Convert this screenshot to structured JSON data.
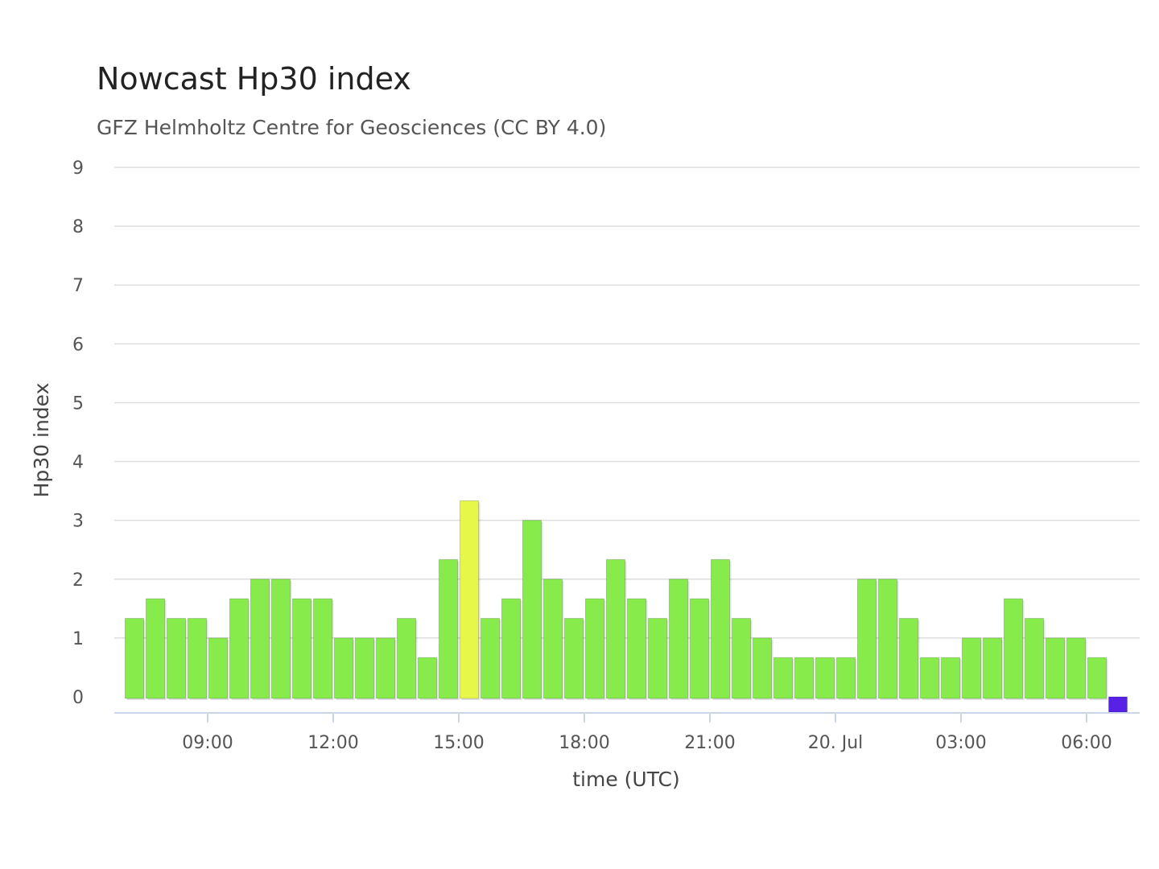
{
  "chart_data": {
    "type": "bar",
    "title": "Nowcast Hp30 index",
    "subtitle": "GFZ Helmholtz Centre for Geosciences (CC BY 4.0)",
    "ylabel": "Hp30 index",
    "xlabel": "time (UTC)",
    "ylim": [
      0,
      9
    ],
    "yticks": [
      0,
      1,
      2,
      3,
      4,
      5,
      6,
      7,
      8,
      9
    ],
    "xticks": [
      {
        "label": "09:00",
        "time": "2025-07-19T09:00"
      },
      {
        "label": "12:00",
        "time": "2025-07-19T12:00"
      },
      {
        "label": "15:00",
        "time": "2025-07-19T15:00"
      },
      {
        "label": "18:00",
        "time": "2025-07-19T18:00"
      },
      {
        "label": "21:00",
        "time": "2025-07-19T21:00"
      },
      {
        "label": "20. Jul",
        "time": "2025-07-20T00:00"
      },
      {
        "label": "03:00",
        "time": "2025-07-20T03:00"
      },
      {
        "label": "06:00",
        "time": "2025-07-20T06:00"
      }
    ],
    "grid": true,
    "legend": "none",
    "colors": {
      "green": "#86eb4b",
      "yellow": "#e6f74a",
      "blue": "#5722e6",
      "grid": "#dddddd",
      "axis": "#ccd6eb"
    },
    "bars": [
      {
        "time": "2025-07-19T07:00",
        "value": 1.333,
        "color": "green"
      },
      {
        "time": "2025-07-19T07:30",
        "value": 1.667,
        "color": "green"
      },
      {
        "time": "2025-07-19T08:00",
        "value": 1.333,
        "color": "green"
      },
      {
        "time": "2025-07-19T08:30",
        "value": 1.333,
        "color": "green"
      },
      {
        "time": "2025-07-19T09:00",
        "value": 1.0,
        "color": "green"
      },
      {
        "time": "2025-07-19T09:30",
        "value": 1.667,
        "color": "green"
      },
      {
        "time": "2025-07-19T10:00",
        "value": 2.0,
        "color": "green"
      },
      {
        "time": "2025-07-19T10:30",
        "value": 2.0,
        "color": "green"
      },
      {
        "time": "2025-07-19T11:00",
        "value": 1.667,
        "color": "green"
      },
      {
        "time": "2025-07-19T11:30",
        "value": 1.667,
        "color": "green"
      },
      {
        "time": "2025-07-19T12:00",
        "value": 1.0,
        "color": "green"
      },
      {
        "time": "2025-07-19T12:30",
        "value": 1.0,
        "color": "green"
      },
      {
        "time": "2025-07-19T13:00",
        "value": 1.0,
        "color": "green"
      },
      {
        "time": "2025-07-19T13:30",
        "value": 1.333,
        "color": "green"
      },
      {
        "time": "2025-07-19T14:00",
        "value": 0.667,
        "color": "green"
      },
      {
        "time": "2025-07-19T14:30",
        "value": 2.333,
        "color": "green"
      },
      {
        "time": "2025-07-19T15:00",
        "value": 3.333,
        "color": "yellow"
      },
      {
        "time": "2025-07-19T15:30",
        "value": 1.333,
        "color": "green"
      },
      {
        "time": "2025-07-19T16:00",
        "value": 1.667,
        "color": "green"
      },
      {
        "time": "2025-07-19T16:30",
        "value": 3.0,
        "color": "green"
      },
      {
        "time": "2025-07-19T17:00",
        "value": 2.0,
        "color": "green"
      },
      {
        "time": "2025-07-19T17:30",
        "value": 1.333,
        "color": "green"
      },
      {
        "time": "2025-07-19T18:00",
        "value": 1.667,
        "color": "green"
      },
      {
        "time": "2025-07-19T18:30",
        "value": 2.333,
        "color": "green"
      },
      {
        "time": "2025-07-19T19:00",
        "value": 1.667,
        "color": "green"
      },
      {
        "time": "2025-07-19T19:30",
        "value": 1.333,
        "color": "green"
      },
      {
        "time": "2025-07-19T20:00",
        "value": 2.0,
        "color": "green"
      },
      {
        "time": "2025-07-19T20:30",
        "value": 1.667,
        "color": "green"
      },
      {
        "time": "2025-07-19T21:00",
        "value": 2.333,
        "color": "green"
      },
      {
        "time": "2025-07-19T21:30",
        "value": 1.333,
        "color": "green"
      },
      {
        "time": "2025-07-19T22:00",
        "value": 1.0,
        "color": "green"
      },
      {
        "time": "2025-07-19T22:30",
        "value": 0.667,
        "color": "green"
      },
      {
        "time": "2025-07-19T23:00",
        "value": 0.667,
        "color": "green"
      },
      {
        "time": "2025-07-19T23:30",
        "value": 0.667,
        "color": "green"
      },
      {
        "time": "2025-07-20T00:00",
        "value": 0.667,
        "color": "green"
      },
      {
        "time": "2025-07-20T00:30",
        "value": 2.0,
        "color": "green"
      },
      {
        "time": "2025-07-20T01:00",
        "value": 2.0,
        "color": "green"
      },
      {
        "time": "2025-07-20T01:30",
        "value": 1.333,
        "color": "green"
      },
      {
        "time": "2025-07-20T02:00",
        "value": 0.667,
        "color": "green"
      },
      {
        "time": "2025-07-20T02:30",
        "value": 0.667,
        "color": "green"
      },
      {
        "time": "2025-07-20T03:00",
        "value": 1.0,
        "color": "green"
      },
      {
        "time": "2025-07-20T03:30",
        "value": 1.0,
        "color": "green"
      },
      {
        "time": "2025-07-20T04:00",
        "value": 1.667,
        "color": "green"
      },
      {
        "time": "2025-07-20T04:30",
        "value": 1.333,
        "color": "green"
      },
      {
        "time": "2025-07-20T05:00",
        "value": 1.0,
        "color": "green"
      },
      {
        "time": "2025-07-20T05:30",
        "value": 1.0,
        "color": "green"
      },
      {
        "time": "2025-07-20T06:00",
        "value": 0.667,
        "color": "green"
      },
      {
        "time": "2025-07-20T06:30",
        "value": 0.0,
        "color": "blue"
      }
    ]
  }
}
